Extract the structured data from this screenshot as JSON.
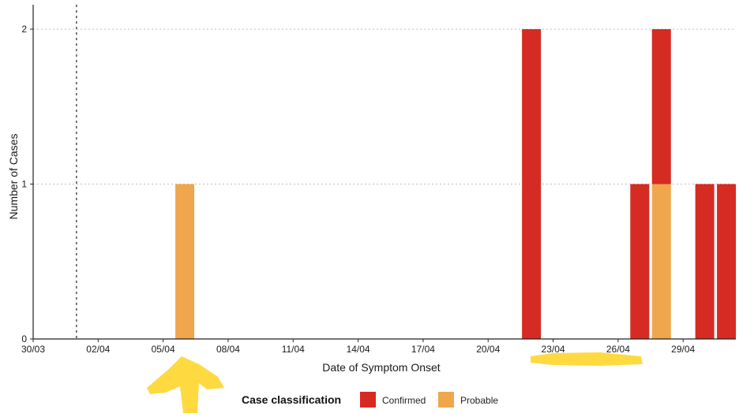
{
  "chart_data": {
    "type": "bar",
    "stacked": true,
    "title": "",
    "xlabel": "Date of Symptom Onset",
    "ylabel": "Number of Cases",
    "x_tick_labels": [
      "30/03",
      "02/04",
      "05/04",
      "08/04",
      "11/04",
      "14/04",
      "17/04",
      "20/04",
      "23/04",
      "26/04",
      "29/04"
    ],
    "y_ticks": [
      0,
      1,
      2
    ],
    "ylim": [
      0,
      2.2
    ],
    "grid": "horizontal dotted",
    "reference_line_date": "01/04",
    "legend": {
      "title": "Case classification",
      "placement": "bottom",
      "entries": [
        {
          "label": "Confirmed",
          "color": "#d52b23"
        },
        {
          "label": "Probable",
          "color": "#f0a64c"
        }
      ]
    },
    "series": [
      {
        "name": "Confirmed",
        "color": "#d52b23",
        "points": [
          {
            "date": "22/04",
            "value": 2
          },
          {
            "date": "27/04",
            "value": 1
          },
          {
            "date": "28/04",
            "value": 1
          },
          {
            "date": "30/04",
            "value": 1
          },
          {
            "date": "01/05",
            "value": 1
          }
        ]
      },
      {
        "name": "Probable",
        "color": "#f0a64c",
        "points": [
          {
            "date": "06/04",
            "value": 1
          },
          {
            "date": "28/04",
            "value": 1
          }
        ]
      }
    ],
    "stack_order": [
      "Probable",
      "Confirmed"
    ],
    "annotations": [
      {
        "type": "highlighter-arrow",
        "color": "#ffd21f",
        "near": "05/04"
      },
      {
        "type": "highlighter-underline",
        "color": "#ffd21f",
        "span": [
          "23/04",
          "26/04"
        ]
      }
    ]
  }
}
